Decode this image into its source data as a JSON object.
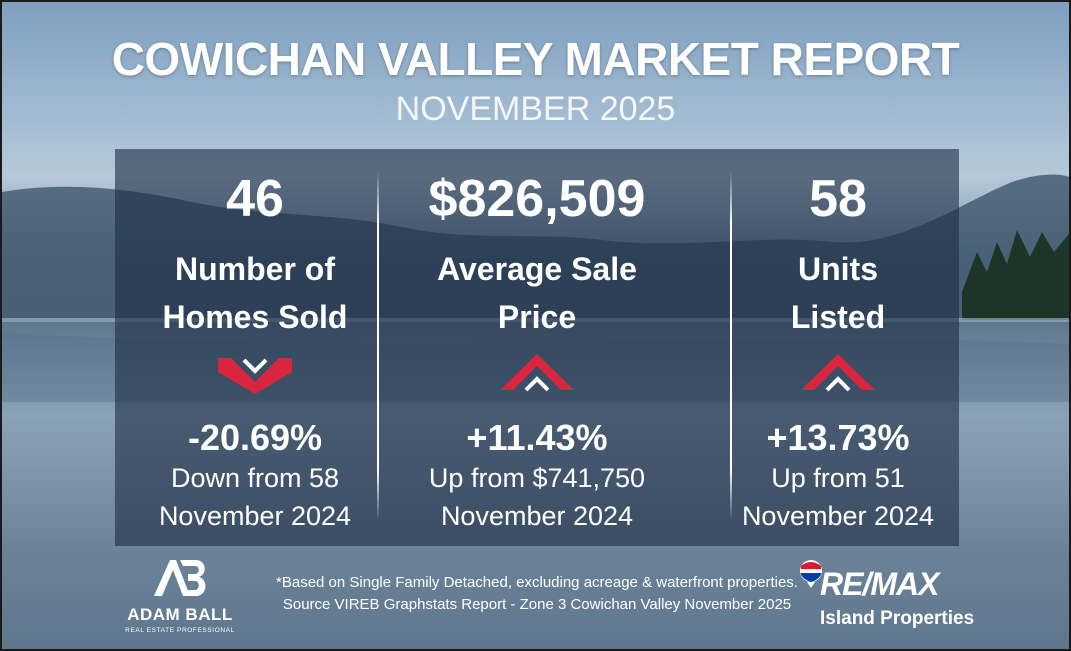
{
  "header": {
    "title": "COWICHAN VALLEY MARKET REPORT",
    "subtitle": "NOVEMBER 2025"
  },
  "stats": [
    {
      "value": "46",
      "label_line1": "Number of",
      "label_line2": "Homes Sold",
      "trend": "down",
      "change": "-20.69%",
      "from_line1": "Down from 58",
      "from_line2": "November 2024"
    },
    {
      "value": "$826,509",
      "label_line1": "Average Sale",
      "label_line2": "Price",
      "trend": "up",
      "change": "+11.43%",
      "from_line1": "Up from $741,750",
      "from_line2": "November 2024"
    },
    {
      "value": "58",
      "label_line1": "Units",
      "label_line2": "Listed",
      "trend": "up",
      "change": "+13.73%",
      "from_line1": "Up from 51",
      "from_line2": "November 2024"
    }
  ],
  "footnote": {
    "line1": "*Based on Single Family Detached, excluding acreage & waterfront properties.",
    "line2": "Source VIREB Graphstats Report - Zone 3 Cowichan Valley November 2025"
  },
  "agent_logo": {
    "name": "ADAM BALL",
    "tagline": "REAL ESTATE PROFESSIONAL"
  },
  "brokerage_logo": {
    "brand": "RE/MAX",
    "office": "Island Properties"
  },
  "colors": {
    "arrow_red": "#d9263e",
    "arrow_white": "#ffffff",
    "panel": "#1a2c42",
    "remax_red": "#dc1c2e",
    "remax_blue": "#003da5"
  }
}
